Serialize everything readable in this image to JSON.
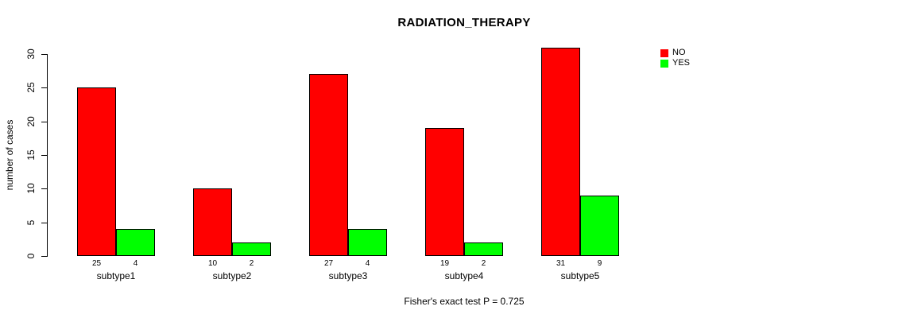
{
  "title": "RADIATION_THERAPY",
  "footer": "Fisher's exact test P = 0.725",
  "legend": {
    "items": [
      {
        "label": "NO",
        "color": "#ff0000"
      },
      {
        "label": "YES",
        "color": "#00ff00"
      }
    ]
  },
  "chart_data": {
    "type": "bar",
    "title": "RADIATION_THERAPY",
    "xlabel": "",
    "ylabel": "number of cases",
    "categories": [
      "subtype1",
      "subtype2",
      "subtype3",
      "subtype4",
      "subtype5"
    ],
    "series": [
      {
        "name": "NO",
        "color": "#ff0000",
        "values": [
          25,
          10,
          27,
          19,
          31
        ]
      },
      {
        "name": "YES",
        "color": "#00ff00",
        "values": [
          4,
          2,
          4,
          2,
          9
        ]
      }
    ],
    "ylim": [
      0,
      30
    ],
    "yticks": [
      0,
      5,
      10,
      15,
      20,
      25,
      30
    ],
    "grid": false,
    "legend_position": "top-right",
    "bar_value_labels_shown": true,
    "annotation": "Fisher's exact test P = 0.725"
  }
}
